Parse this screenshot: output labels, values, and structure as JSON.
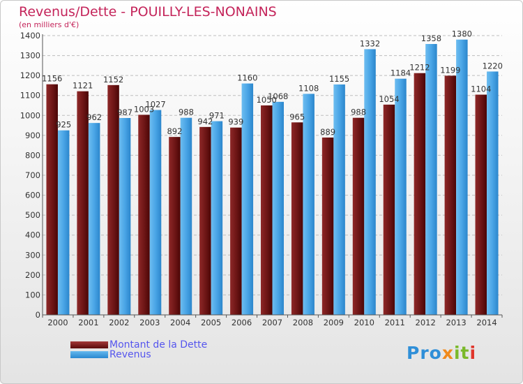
{
  "header": {
    "title": "Revenus/Dette - POUILLY-LES-NONAINS",
    "subtitle": "(en milliers d'€)"
  },
  "colors": {
    "title": "#c4245a",
    "debt": "#7a1a1a",
    "revenue": "#3fa0e4",
    "legend_text": "#5555ee"
  },
  "legend": {
    "debt_label": "Montant de la Dette",
    "revenue_label": "Revenus"
  },
  "logo": {
    "part1": "Pro",
    "part2": "x",
    "part3": "it",
    "part4": "i"
  },
  "chart_data": {
    "type": "bar",
    "title": "Revenus/Dette - POUILLY-LES-NONAINS",
    "subtitle": "(en milliers d'€)",
    "xlabel": "",
    "ylabel": "",
    "ylim": [
      0,
      1400
    ],
    "yticks": [
      0,
      100,
      200,
      300,
      400,
      500,
      600,
      700,
      800,
      900,
      1000,
      1100,
      1200,
      1300,
      1400
    ],
    "grid": true,
    "legend_position": "bottom-left",
    "categories": [
      "2000",
      "2001",
      "2002",
      "2003",
      "2004",
      "2005",
      "2006",
      "2007",
      "2008",
      "2009",
      "2010",
      "2011",
      "2012",
      "2013",
      "2014"
    ],
    "series": [
      {
        "name": "Montant de la Dette",
        "values": [
          1156,
          1121,
          1152,
          1003,
          892,
          942,
          939,
          1050,
          965,
          889,
          988,
          1054,
          1212,
          1199,
          1104
        ],
        "labels": [
          "1156",
          "1121",
          "1152",
          "1003",
          "892",
          "942",
          "939",
          "1050",
          "965",
          "889",
          "988",
          "1054",
          "1212",
          "1199",
          "1104"
        ]
      },
      {
        "name": "Revenus",
        "values": [
          925,
          962,
          987,
          1027,
          988,
          971,
          1160,
          1068,
          1108,
          1155,
          1332,
          1184,
          1358,
          1380,
          1220
        ],
        "labels": [
          "925",
          "962",
          "987",
          "1027",
          "988",
          "971",
          "1160",
          "1068",
          "1108",
          "1155",
          "1332",
          "1184",
          "1358",
          "1380",
          "1220"
        ]
      }
    ]
  }
}
